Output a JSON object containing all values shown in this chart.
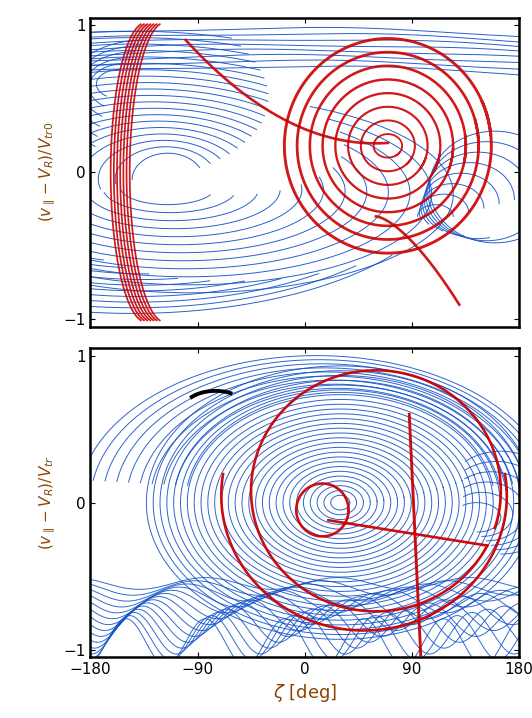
{
  "xlim": [
    -180,
    180
  ],
  "ylim": [
    -1.05,
    1.05
  ],
  "label_color": "#8B4500",
  "blue_color": "#1050C8",
  "red_color": "#CC0000",
  "black_color": "#000000",
  "bg_color": "#FFFFFF",
  "lw_blue": 0.7,
  "lw_red": 1.9,
  "lw_black": 2.8,
  "xlabel": "$\\zeta$ [deg]",
  "ylabel_top": "$(v_{\\parallel}-V_R)/V_{tr0}$",
  "ylabel_bottom": "$(v_{\\parallel}-V_R)/V_{tr}$"
}
